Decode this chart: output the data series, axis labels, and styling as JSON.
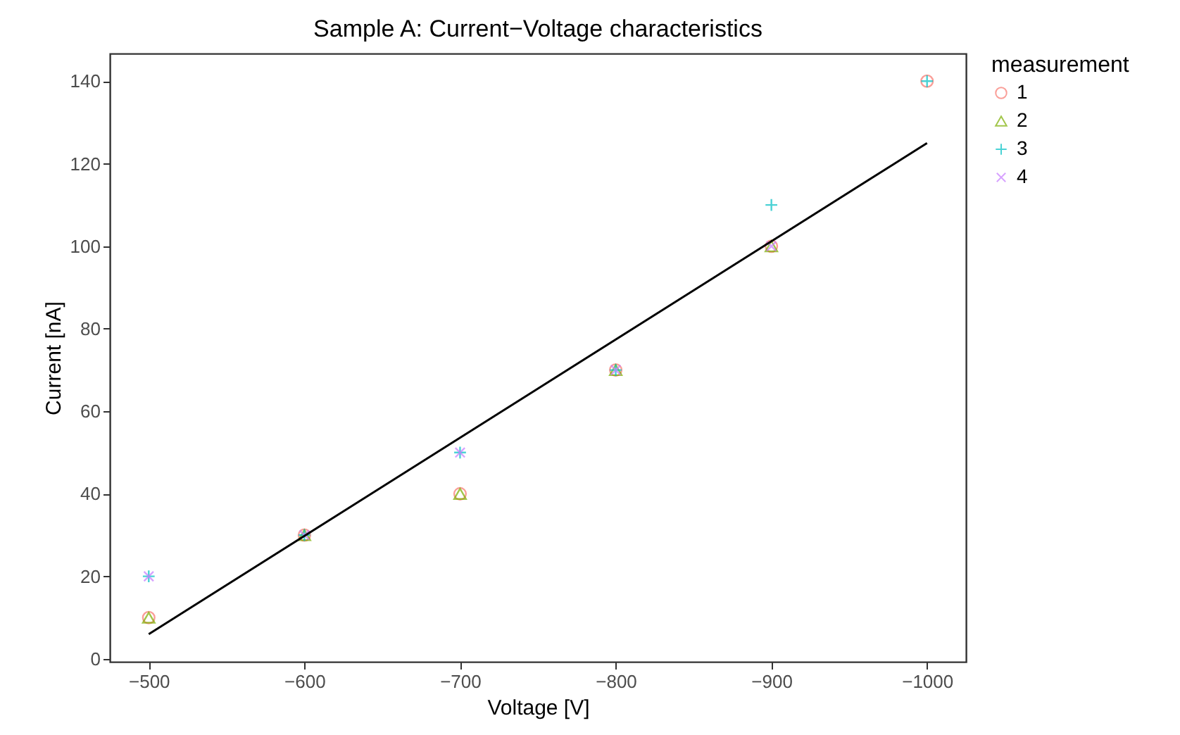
{
  "chart_data": {
    "type": "scatter",
    "title": "Sample A: Current−Voltage characteristics",
    "xlabel": "Voltage [V]",
    "ylabel": "Current [nA]",
    "legend_title": "measurement",
    "x": [
      -500,
      -600,
      -700,
      -800,
      -900,
      -1000
    ],
    "series": [
      {
        "name": "1",
        "color": "#f8766d",
        "marker": "circle",
        "values": [
          10,
          30,
          40,
          70,
          100,
          140
        ]
      },
      {
        "name": "2",
        "color": "#7cae00",
        "marker": "triangle",
        "values": [
          10,
          30,
          40,
          70,
          100,
          null
        ]
      },
      {
        "name": "3",
        "color": "#00bfc4",
        "marker": "plus",
        "values": [
          20,
          30,
          50,
          70,
          110,
          140
        ]
      },
      {
        "name": "4",
        "color": "#c77cff",
        "marker": "cross",
        "values": [
          20,
          30,
          50,
          70,
          100,
          null
        ]
      },
      {
        "type": "line",
        "color": "#000000",
        "line_style": "solid",
        "x": [
          -500,
          -1000
        ],
        "values": [
          6,
          125
        ]
      }
    ],
    "xlim": [
      -475,
      -1025
    ],
    "xticks": [
      -500,
      -600,
      -700,
      -800,
      -900,
      -1000
    ],
    "ylim": [
      -0.7,
      146.7
    ],
    "yticks": [
      0,
      20,
      40,
      60,
      80,
      100,
      120,
      140
    ],
    "grid": false,
    "legend": "right"
  }
}
